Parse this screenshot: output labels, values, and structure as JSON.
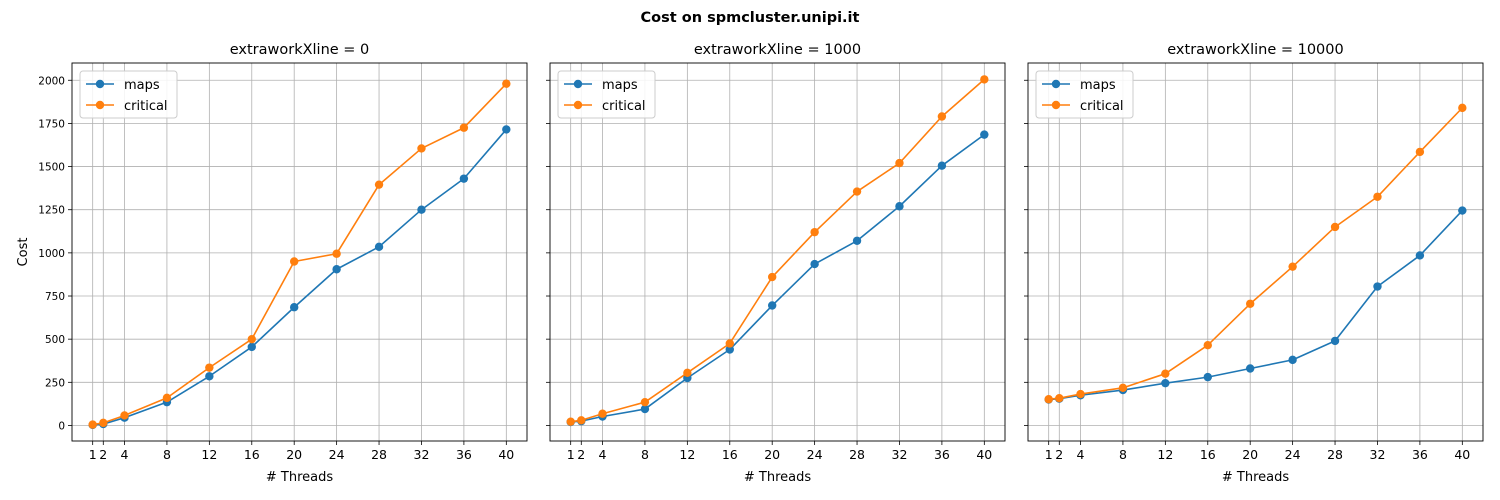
{
  "figure": {
    "suptitle": "Cost on spmcluster.unipi.it"
  },
  "chart_data": [
    {
      "type": "line",
      "title": "extraworkXline = 0",
      "xlabel": "# Threads",
      "ylabel": "Cost",
      "x": [
        1,
        2,
        4,
        8,
        12,
        16,
        20,
        24,
        28,
        32,
        36,
        40
      ],
      "xticks": [
        1,
        2,
        4,
        8,
        12,
        16,
        20,
        24,
        28,
        32,
        36,
        40
      ],
      "yticks": [
        0,
        250,
        500,
        750,
        1000,
        1250,
        1500,
        1750,
        2000
      ],
      "ylim": [
        -90,
        2100
      ],
      "grid": true,
      "legend": "top-left",
      "series": [
        {
          "name": "maps",
          "color": "#1f77b4",
          "values": [
            3,
            8,
            45,
            135,
            285,
            455,
            685,
            905,
            1035,
            1250,
            1430,
            1715
          ]
        },
        {
          "name": "critical",
          "color": "#ff7f0e",
          "values": [
            5,
            15,
            58,
            160,
            335,
            500,
            950,
            995,
            1395,
            1605,
            1725,
            1980
          ]
        }
      ]
    },
    {
      "type": "line",
      "title": "extraworkXline = 1000",
      "xlabel": "# Threads",
      "ylabel": "",
      "x": [
        1,
        2,
        4,
        8,
        12,
        16,
        20,
        24,
        28,
        32,
        36,
        40
      ],
      "xticks": [
        1,
        2,
        4,
        8,
        12,
        16,
        20,
        24,
        28,
        32,
        36,
        40
      ],
      "yticks": [
        0,
        250,
        500,
        750,
        1000,
        1250,
        1500,
        1750,
        2000
      ],
      "ylim": [
        -90,
        2100
      ],
      "grid": true,
      "legend": "top-left",
      "series": [
        {
          "name": "maps",
          "color": "#1f77b4",
          "values": [
            20,
            25,
            52,
            95,
            275,
            440,
            695,
            935,
            1070,
            1270,
            1505,
            1685
          ]
        },
        {
          "name": "critical",
          "color": "#ff7f0e",
          "values": [
            22,
            30,
            68,
            135,
            305,
            475,
            860,
            1120,
            1355,
            1520,
            1790,
            2005
          ]
        }
      ]
    },
    {
      "type": "line",
      "title": "extraworkXline = 10000",
      "xlabel": "# Threads",
      "ylabel": "",
      "x": [
        1,
        2,
        4,
        8,
        12,
        16,
        20,
        24,
        28,
        32,
        36,
        40
      ],
      "xticks": [
        1,
        2,
        4,
        8,
        12,
        16,
        20,
        24,
        28,
        32,
        36,
        40
      ],
      "yticks": [
        0,
        250,
        500,
        750,
        1000,
        1250,
        1500,
        1750,
        2000
      ],
      "ylim": [
        -90,
        2100
      ],
      "grid": true,
      "legend": "top-left",
      "series": [
        {
          "name": "maps",
          "color": "#1f77b4",
          "values": [
            150,
            155,
            175,
            205,
            245,
            280,
            330,
            380,
            490,
            805,
            985,
            1245
          ]
        },
        {
          "name": "critical",
          "color": "#ff7f0e",
          "values": [
            152,
            158,
            182,
            218,
            300,
            465,
            705,
            920,
            1150,
            1325,
            1585,
            1840
          ]
        }
      ]
    }
  ]
}
